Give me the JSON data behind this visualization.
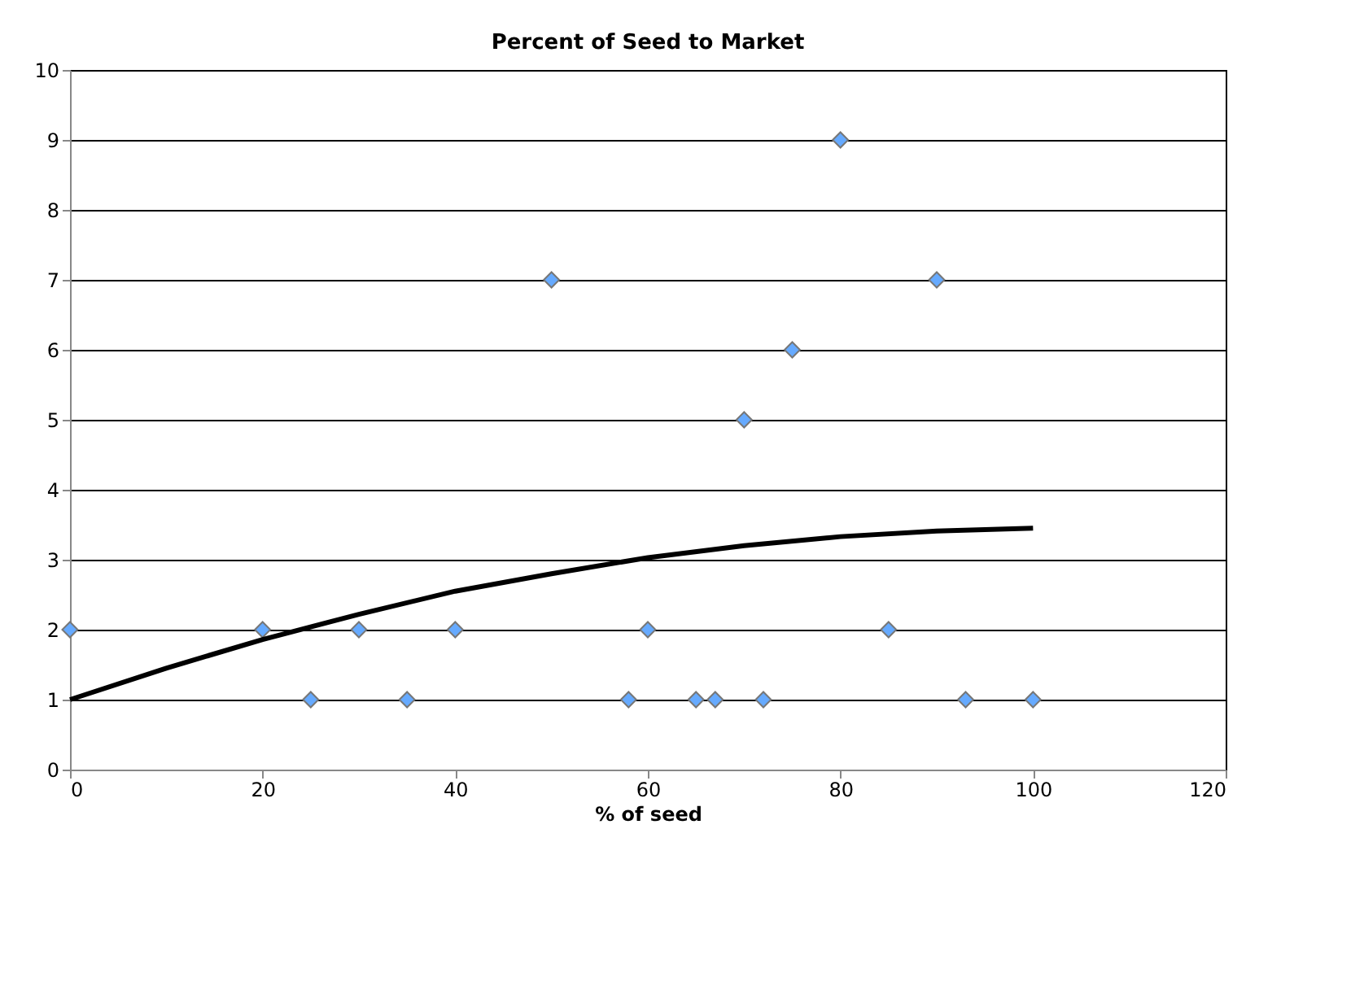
{
  "chart_data": {
    "type": "scatter",
    "title": "Percent of Seed to Market",
    "xlabel": "% of seed",
    "xlim": [
      0,
      120
    ],
    "xticks": [
      0,
      20,
      40,
      60,
      80,
      100,
      120
    ],
    "ylim": [
      0,
      10
    ],
    "yticks": [
      0,
      1,
      2,
      3,
      4,
      5,
      6,
      7,
      8,
      9,
      10
    ],
    "grid": "y",
    "series": [
      {
        "type": "scatter",
        "marker": "diamond",
        "color": "#66aaff",
        "x": [
          0,
          20,
          25,
          30,
          35,
          40,
          50,
          58,
          60,
          65,
          67,
          70,
          72,
          75,
          80,
          85,
          90,
          93,
          100
        ],
        "values": [
          2,
          2,
          1,
          2,
          1,
          2,
          7,
          1,
          2,
          1,
          1,
          5,
          1,
          6,
          9,
          2,
          7,
          1,
          1
        ]
      },
      {
        "type": "line",
        "marker": "none",
        "color": "#000000",
        "line_style": "solid",
        "x": [
          0,
          10,
          20,
          30,
          40,
          50,
          60,
          70,
          80,
          90,
          100
        ],
        "values": [
          1.0,
          1.45,
          1.86,
          2.22,
          2.55,
          2.8,
          3.03,
          3.2,
          3.33,
          3.41,
          3.45
        ]
      }
    ]
  }
}
